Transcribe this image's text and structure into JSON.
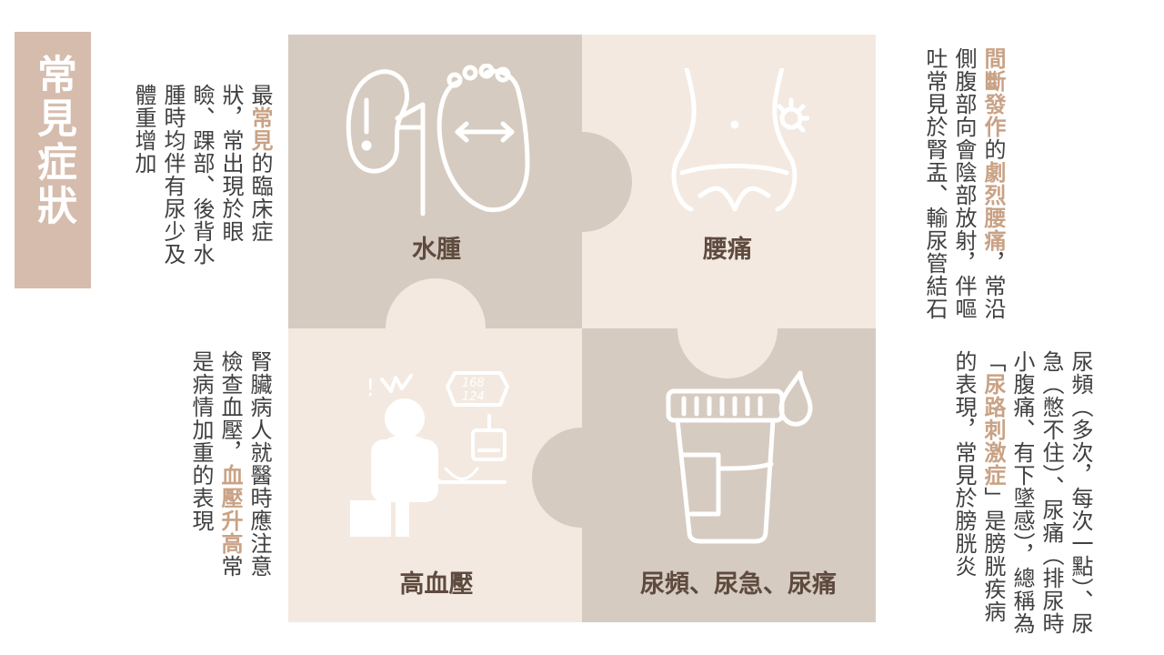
{
  "title": "常見症狀",
  "colors": {
    "dark_tile": "#d6cbc0",
    "light_tile": "#f3e9e0",
    "title_bg": "#d5bcad",
    "highlight": "#c9a285",
    "label": "#5e4a3e"
  },
  "tiles": {
    "edema": {
      "label": "水腫",
      "icon": "kidney-foot-swelling-icon"
    },
    "back_pain": {
      "label": "腰痛",
      "icon": "waist-pain-icon"
    },
    "hypertension": {
      "label": "高血壓",
      "icon": "blood-pressure-measure-icon"
    },
    "urinary": {
      "label": "尿頻、尿急、尿痛",
      "icon": "urine-cup-icon"
    }
  },
  "texts": {
    "edema": {
      "p1": "最",
      "h1": "常見",
      "p2": "的臨床症狀，常出現於眼瞼、踝部、後背水腫時均伴有尿少及體重增加"
    },
    "back_pain": {
      "h1": "間斷發作",
      "p1": "的",
      "h2": "劇烈腰痛",
      "p2": "，常沿側腹部向會陰部放射，伴嘔吐常見於腎盂、輸尿管結石"
    },
    "hypertension": {
      "p1": "腎臟病人就醫時應注意檢查血壓，",
      "h1": "血壓升高",
      "p2": "常是病情加重的表現"
    },
    "urinary": {
      "p1": "尿頻（多次，每次一點）、尿急（憋不住）、尿痛（排尿時小腹痛、有下墜感），總稱為「",
      "h1": "尿路刺激症",
      "p2": "」是膀胱疾病的表現，常見於膀胱炎"
    }
  },
  "blood_pressure": {
    "top": "168",
    "bottom": "124"
  }
}
